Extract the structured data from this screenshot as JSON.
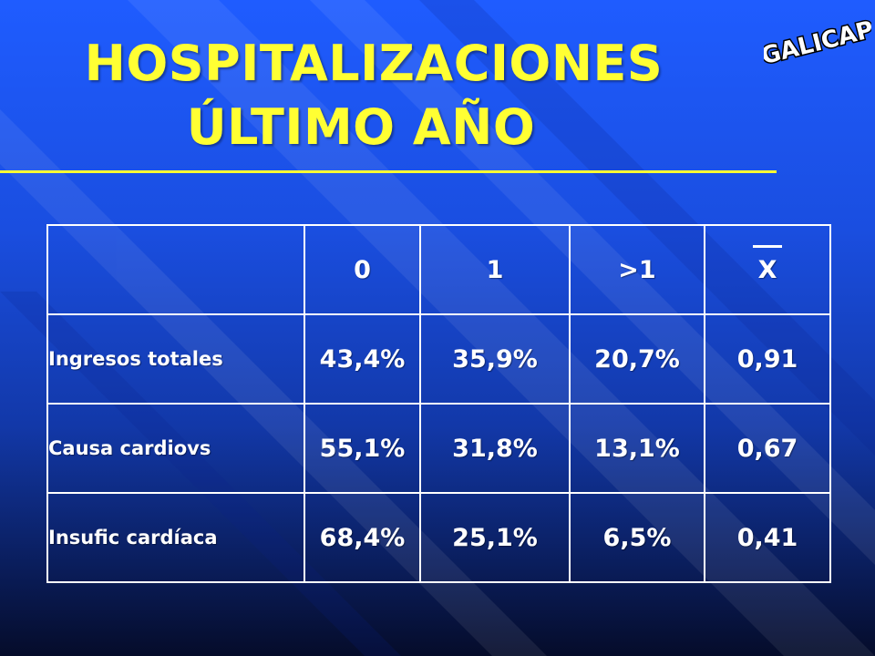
{
  "slide": {
    "title_line1": "HOSPITALIZACIONES",
    "title_line2": "ÚLTIMO AÑO",
    "logo_text": "GALICAP",
    "accent_color": "#ffff33",
    "background_color": "#1f5cff"
  },
  "table": {
    "headers": [
      "",
      "0",
      "1",
      ">1",
      "X"
    ],
    "rows": [
      {
        "label": "Ingresos totales",
        "cells": [
          "43,4%",
          "35,9%",
          "20,7%",
          "0,91"
        ]
      },
      {
        "label": "Causa cardiovs",
        "cells": [
          "55,1%",
          "31,8%",
          "13,1%",
          "0,67"
        ]
      },
      {
        "label": "Insufic cardíaca",
        "cells": [
          "68,4%",
          "25,1%",
          "6,5%",
          "0,41"
        ]
      }
    ]
  }
}
